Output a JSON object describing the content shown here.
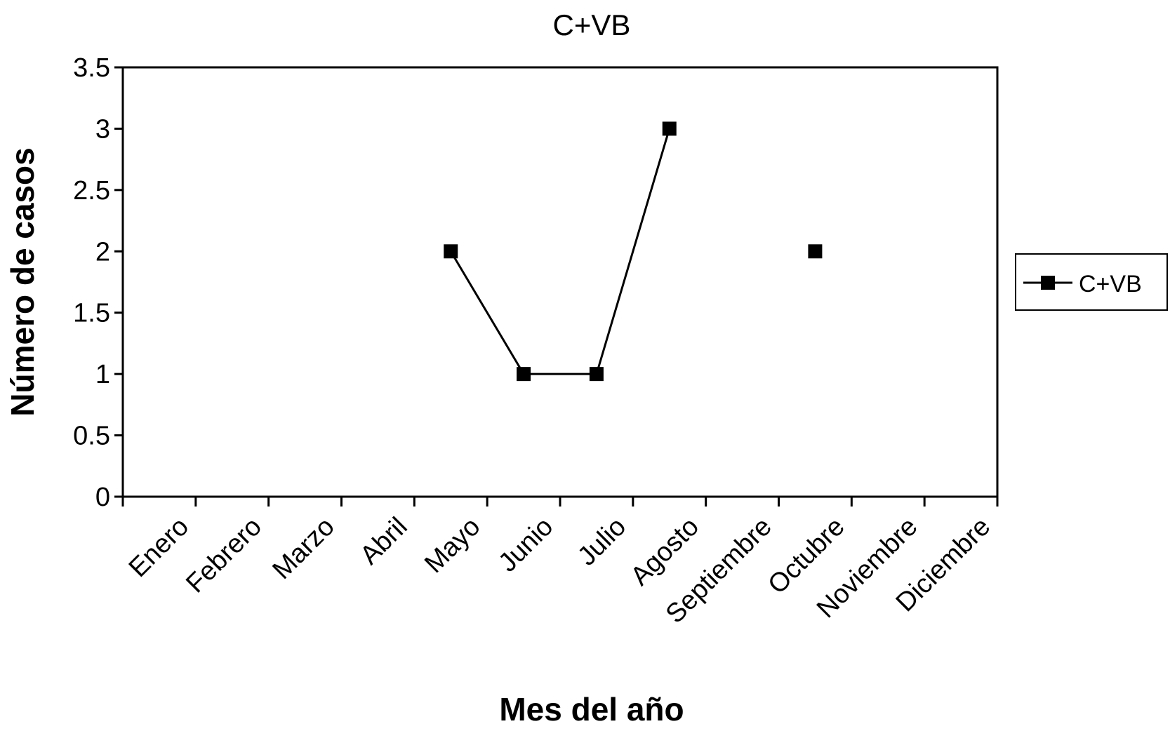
{
  "chart_data": {
    "type": "line",
    "title": "C+VB",
    "xlabel": "Mes del año",
    "ylabel": "Número de casos",
    "categories": [
      "Enero",
      "Febrero",
      "Marzo",
      "Abril",
      "Mayo",
      "Junio",
      "Julio",
      "Agosto",
      "Septiembre",
      "Octubre",
      "Noviembre",
      "Diciembre"
    ],
    "y_ticks": [
      "0",
      "0.5",
      "1",
      "1.5",
      "2",
      "2.5",
      "3",
      "3.5"
    ],
    "ylim": [
      0,
      3.5
    ],
    "series": [
      {
        "name": "C+VB",
        "values": [
          null,
          null,
          null,
          null,
          2,
          1,
          1,
          3,
          null,
          2,
          null,
          null
        ],
        "marker": "square",
        "color": "#000000"
      }
    ],
    "legend": {
      "position": "right",
      "entries": [
        "C+VB"
      ]
    },
    "grid": false
  }
}
